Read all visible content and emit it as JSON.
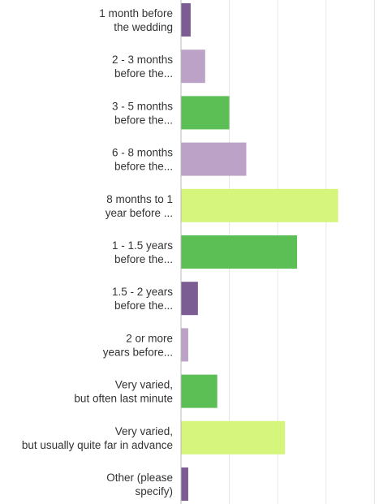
{
  "chart_data": {
    "type": "bar",
    "orientation": "horizontal",
    "title": "",
    "xlabel": "",
    "ylabel": "",
    "grid": true,
    "xlim": [
      0,
      40
    ],
    "categories": [
      "1 month before the wedding",
      "2 - 3 months before the...",
      "3 - 5 months before the...",
      "6 - 8 months before the...",
      "8 months to 1 year before ...",
      "1 - 1.5 years before the...",
      "1.5 - 2 years before the...",
      "2 or more years before...",
      "Very varied, but often last minute",
      "Very varied, but usually quite far in advance",
      "Other (please specify)"
    ],
    "label_lines": [
      [
        "1 month before",
        "the wedding"
      ],
      [
        "2 - 3 months",
        "before the..."
      ],
      [
        "3 - 5 months",
        "before the..."
      ],
      [
        "6 - 8 months",
        "before the..."
      ],
      [
        "8 months to 1",
        "year before ..."
      ],
      [
        "1 - 1.5 years",
        "before the..."
      ],
      [
        "1.5 - 2 years",
        "before the..."
      ],
      [
        "2 or more",
        "years before..."
      ],
      [
        "Very varied,",
        "but often last minute"
      ],
      [
        "Very varied,",
        "but usually quite far in advance"
      ],
      [
        "Other (please",
        "specify)"
      ]
    ],
    "values": [
      0.8,
      2.0,
      4.0,
      5.4,
      13.0,
      9.6,
      1.4,
      0.6,
      3.0,
      8.6,
      0.6
    ],
    "colors": [
      "#7b5c93",
      "#bba2c6",
      "#5cbf55",
      "#bba2c6",
      "#d5f57c",
      "#5cbf55",
      "#7b5c93",
      "#bba2c6",
      "#5cbf55",
      "#d5f57c",
      "#7b5c93"
    ],
    "axis_color": "#b8b8b8",
    "grid_color": "#e6e6e6",
    "label_color": "#333333"
  }
}
